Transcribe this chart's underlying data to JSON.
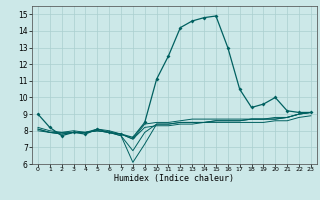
{
  "xlabel": "Humidex (Indice chaleur)",
  "xlim": [
    -0.5,
    23.5
  ],
  "ylim": [
    6,
    15.5
  ],
  "yticks": [
    6,
    7,
    8,
    9,
    10,
    11,
    12,
    13,
    14,
    15
  ],
  "xticks": [
    0,
    1,
    2,
    3,
    4,
    5,
    6,
    7,
    8,
    9,
    10,
    11,
    12,
    13,
    14,
    15,
    16,
    17,
    18,
    19,
    20,
    21,
    22,
    23
  ],
  "background_color": "#cce8e8",
  "grid_color": "#aacfcf",
  "line_color": "#006060",
  "main_line": [
    9.0,
    8.2,
    7.7,
    7.9,
    7.8,
    8.1,
    7.9,
    7.8,
    7.6,
    8.5,
    11.1,
    12.5,
    14.2,
    14.6,
    14.8,
    14.9,
    13.0,
    10.5,
    9.4,
    9.6,
    10.0,
    9.2,
    9.1,
    9.1
  ],
  "other_lines": [
    [
      8.2,
      8.0,
      7.9,
      8.0,
      7.9,
      8.1,
      8.0,
      7.8,
      7.5,
      8.4,
      8.5,
      8.5,
      8.6,
      8.7,
      8.7,
      8.7,
      8.7,
      8.7,
      8.7,
      8.7,
      8.7,
      8.8,
      9.0,
      9.1
    ],
    [
      8.0,
      7.9,
      7.9,
      7.9,
      7.9,
      8.0,
      7.9,
      7.8,
      7.5,
      8.2,
      8.3,
      8.3,
      8.4,
      8.4,
      8.5,
      8.5,
      8.5,
      8.5,
      8.5,
      8.5,
      8.6,
      8.6,
      8.8,
      8.9
    ],
    [
      8.1,
      7.9,
      7.8,
      7.9,
      7.9,
      8.0,
      7.9,
      7.7,
      6.1,
      7.2,
      8.4,
      8.4,
      8.5,
      8.5,
      8.5,
      8.6,
      8.6,
      8.6,
      8.7,
      8.7,
      8.7,
      8.8,
      9.0,
      9.1
    ],
    [
      8.1,
      7.9,
      7.8,
      7.9,
      7.9,
      8.0,
      7.9,
      7.7,
      6.8,
      7.9,
      8.4,
      8.4,
      8.5,
      8.5,
      8.5,
      8.6,
      8.6,
      8.6,
      8.7,
      8.7,
      8.8,
      8.8,
      9.0,
      9.1
    ]
  ]
}
